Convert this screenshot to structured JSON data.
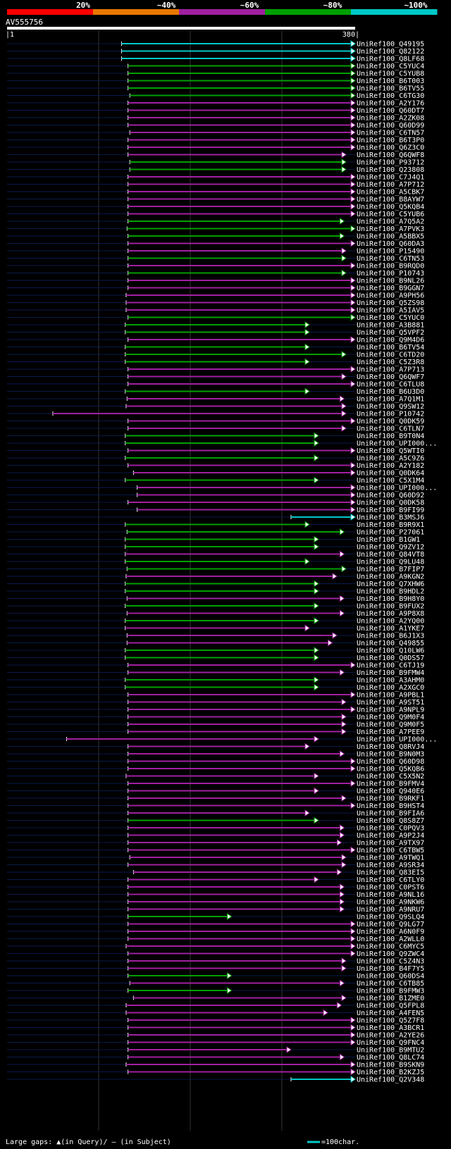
{
  "chart_data": {
    "type": "alignment-graphic",
    "query": "AV555756",
    "query_start": "1",
    "query_end": "380",
    "query_length": 380,
    "identity_bins": [
      {
        "label": "20%",
        "color": "#ff0000"
      },
      {
        "label": "~40%",
        "color": "#e87800"
      },
      {
        "label": "~60%",
        "color": "#a020a0"
      },
      {
        "label": "~80%",
        "color": "#00a000"
      },
      {
        "label": "~100%",
        "color": "#00c8c8"
      }
    ],
    "footer_gaps": "Large gaps: ▲(in Query)/ – (in Subject)",
    "footer_scale": "=100char.",
    "hits": [
      {
        "id": "UniRef100_Q49195",
        "start": 125,
        "end": 380,
        "bin": 4
      },
      {
        "id": "UniRef100_Q82122",
        "start": 125,
        "end": 380,
        "bin": 4
      },
      {
        "id": "UniRef100_Q8LF68",
        "start": 125,
        "end": 380,
        "bin": 4
      },
      {
        "id": "UniRef100_C5YUC4",
        "start": 132,
        "end": 380,
        "bin": 3
      },
      {
        "id": "UniRef100_C5YUB8",
        "start": 132,
        "end": 380,
        "bin": 3
      },
      {
        "id": "UniRef100_B6T003",
        "start": 132,
        "end": 380,
        "bin": 3
      },
      {
        "id": "UniRef100_B6TV55",
        "start": 132,
        "end": 380,
        "bin": 3
      },
      {
        "id": "UniRef100_C6TG30",
        "start": 134,
        "end": 380,
        "bin": 3
      },
      {
        "id": "UniRef100_A2Y176",
        "start": 132,
        "end": 380,
        "bin": 2
      },
      {
        "id": "UniRef100_Q60DT7",
        "start": 132,
        "end": 380,
        "bin": 2
      },
      {
        "id": "UniRef100_A2ZK08",
        "start": 132,
        "end": 380,
        "bin": 2
      },
      {
        "id": "UniRef100_Q60D99",
        "start": 132,
        "end": 380,
        "bin": 2
      },
      {
        "id": "UniRef100_C6TN57",
        "start": 134,
        "end": 380,
        "bin": 2
      },
      {
        "id": "UniRef100_B6T3P0",
        "start": 132,
        "end": 380,
        "bin": 2
      },
      {
        "id": "UniRef100_Q6Z3C0",
        "start": 132,
        "end": 380,
        "bin": 2
      },
      {
        "id": "UniRef100_Q6QWF8",
        "start": 132,
        "end": 370,
        "bin": 2
      },
      {
        "id": "UniRef100_P93712",
        "start": 134,
        "end": 370,
        "bin": 3
      },
      {
        "id": "UniRef100_Q23808",
        "start": 134,
        "end": 370,
        "bin": 3
      },
      {
        "id": "UniRef100_C7J4Q1",
        "start": 132,
        "end": 380,
        "bin": 2
      },
      {
        "id": "UniRef100_A7P712",
        "start": 132,
        "end": 380,
        "bin": 2
      },
      {
        "id": "UniRef100_A5CBK7",
        "start": 132,
        "end": 380,
        "bin": 2
      },
      {
        "id": "UniRef100_B8AYW7",
        "start": 132,
        "end": 380,
        "bin": 2
      },
      {
        "id": "UniRef100_Q5KQB4",
        "start": 132,
        "end": 380,
        "bin": 2
      },
      {
        "id": "UniRef100_C5YUB6",
        "start": 132,
        "end": 380,
        "bin": 2
      },
      {
        "id": "UniRef100_A7Q5A2",
        "start": 132,
        "end": 368,
        "bin": 3
      },
      {
        "id": "UniRef100_A7PVK3",
        "start": 131,
        "end": 380,
        "bin": 3
      },
      {
        "id": "UniRef100_A5BBX5",
        "start": 132,
        "end": 368,
        "bin": 3
      },
      {
        "id": "UniRef100_Q60DA3",
        "start": 132,
        "end": 380,
        "bin": 2
      },
      {
        "id": "UniRef100_P15490",
        "start": 132,
        "end": 370,
        "bin": 2
      },
      {
        "id": "UniRef100_C6TN53",
        "start": 132,
        "end": 370,
        "bin": 3
      },
      {
        "id": "UniRef100_B9RQD0",
        "start": 132,
        "end": 380,
        "bin": 2
      },
      {
        "id": "UniRef100_P10743",
        "start": 132,
        "end": 370,
        "bin": 3
      },
      {
        "id": "UniRef100_B9NL26",
        "start": 132,
        "end": 380,
        "bin": 2
      },
      {
        "id": "UniRef100_B9GGN7",
        "start": 132,
        "end": 380,
        "bin": 2
      },
      {
        "id": "UniRef100_A9PH56",
        "start": 130,
        "end": 380,
        "bin": 2
      },
      {
        "id": "UniRef100_Q5ZS98",
        "start": 130,
        "end": 380,
        "bin": 2
      },
      {
        "id": "UniRef100_A5IAV5",
        "start": 130,
        "end": 380,
        "bin": 2
      },
      {
        "id": "UniRef100_C5YUC0",
        "start": 132,
        "end": 380,
        "bin": 3
      },
      {
        "id": "UniRef100_A3B881",
        "start": 129,
        "end": 330,
        "bin": 3
      },
      {
        "id": "UniRef100_Q5VPF2",
        "start": 129,
        "end": 330,
        "bin": 3
      },
      {
        "id": "UniRef100_Q9M4D6",
        "start": 132,
        "end": 380,
        "bin": 2
      },
      {
        "id": "UniRef100_B6TV54",
        "start": 129,
        "end": 330,
        "bin": 3
      },
      {
        "id": "UniRef100_C6TD20",
        "start": 129,
        "end": 370,
        "bin": 3
      },
      {
        "id": "UniRef100_C5Z3R8",
        "start": 129,
        "end": 330,
        "bin": 3
      },
      {
        "id": "UniRef100_A7P713",
        "start": 132,
        "end": 380,
        "bin": 2
      },
      {
        "id": "UniRef100_Q6QWF7",
        "start": 132,
        "end": 370,
        "bin": 2
      },
      {
        "id": "UniRef100_C6TLU8",
        "start": 132,
        "end": 380,
        "bin": 2
      },
      {
        "id": "UniRef100_B6U3D0",
        "start": 129,
        "end": 330,
        "bin": 3
      },
      {
        "id": "UniRef100_A7Q1M1",
        "start": 131,
        "end": 368,
        "bin": 2
      },
      {
        "id": "UniRef100_Q9SW12",
        "start": 130,
        "end": 370,
        "bin": 2
      },
      {
        "id": "UniRef100_P10742",
        "start": 50,
        "end": 370,
        "bin": 2
      },
      {
        "id": "UniRef100_Q0DK59",
        "start": 132,
        "end": 380,
        "bin": 2
      },
      {
        "id": "UniRef100_C6TLN7",
        "start": 132,
        "end": 370,
        "bin": 2
      },
      {
        "id": "UniRef100_B9T0N4",
        "start": 129,
        "end": 340,
        "bin": 3
      },
      {
        "id": "UniRef100_UPI000...",
        "start": 129,
        "end": 340,
        "bin": 3
      },
      {
        "id": "UniRef100_Q5WTI0",
        "start": 132,
        "end": 380,
        "bin": 2
      },
      {
        "id": "UniRef100_A5C9Z6",
        "start": 129,
        "end": 340,
        "bin": 3
      },
      {
        "id": "UniRef100_A2Y182",
        "start": 132,
        "end": 380,
        "bin": 2
      },
      {
        "id": "UniRef100_Q0DK64",
        "start": 138,
        "end": 380,
        "bin": 2
      },
      {
        "id": "UniRef100_C5X1M4",
        "start": 129,
        "end": 340,
        "bin": 3
      },
      {
        "id": "UniRef100_UPI000...",
        "start": 142,
        "end": 380,
        "bin": 2
      },
      {
        "id": "UniRef100_Q60D92",
        "start": 142,
        "end": 380,
        "bin": 2
      },
      {
        "id": "UniRef100_Q0DK58",
        "start": 132,
        "end": 380,
        "bin": 2
      },
      {
        "id": "UniRef100_B9FI99",
        "start": 142,
        "end": 380,
        "bin": 2
      },
      {
        "id": "UniRef100_B3MSJ6",
        "start": 310,
        "end": 380,
        "bin": 4
      },
      {
        "id": "UniRef100_B9R9X1",
        "start": 129,
        "end": 330,
        "bin": 3
      },
      {
        "id": "UniRef100_P27061",
        "start": 131,
        "end": 368,
        "bin": 3
      },
      {
        "id": "UniRef100_B1GW1",
        "start": 129,
        "end": 340,
        "bin": 3
      },
      {
        "id": "UniRef100_Q9ZV12",
        "start": 129,
        "end": 340,
        "bin": 3
      },
      {
        "id": "UniRef100_Q84VT8",
        "start": 129,
        "end": 368,
        "bin": 2
      },
      {
        "id": "UniRef100_Q9LU48",
        "start": 129,
        "end": 330,
        "bin": 3
      },
      {
        "id": "UniRef100_B7FIP7",
        "start": 131,
        "end": 370,
        "bin": 3
      },
      {
        "id": "UniRef100_A9KGN2",
        "start": 130,
        "end": 360,
        "bin": 2
      },
      {
        "id": "UniRef100_Q7XHW6",
        "start": 129,
        "end": 340,
        "bin": 3
      },
      {
        "id": "UniRef100_B9HDL2",
        "start": 129,
        "end": 340,
        "bin": 3
      },
      {
        "id": "UniRef100_B9H8Y0",
        "start": 131,
        "end": 368,
        "bin": 2
      },
      {
        "id": "UniRef100_B9FUX2",
        "start": 129,
        "end": 340,
        "bin": 3
      },
      {
        "id": "UniRef100_A9P8X8",
        "start": 131,
        "end": 368,
        "bin": 2
      },
      {
        "id": "UniRef100_A2YQ00",
        "start": 129,
        "end": 340,
        "bin": 3
      },
      {
        "id": "UniRef100_A1YKE7",
        "start": 129,
        "end": 330,
        "bin": 2
      },
      {
        "id": "UniRef100_B6J1X3",
        "start": 131,
        "end": 360,
        "bin": 2
      },
      {
        "id": "UniRef100_Q49855",
        "start": 131,
        "end": 355,
        "bin": 2
      },
      {
        "id": "UniRef100_Q10LW6",
        "start": 129,
        "end": 340,
        "bin": 3
      },
      {
        "id": "UniRef100_Q0DS57",
        "start": 129,
        "end": 340,
        "bin": 3
      },
      {
        "id": "UniRef100_C6TJ19",
        "start": 132,
        "end": 380,
        "bin": 2
      },
      {
        "id": "UniRef100_B9FMW4",
        "start": 132,
        "end": 368,
        "bin": 2
      },
      {
        "id": "UniRef100_A3AHM0",
        "start": 129,
        "end": 340,
        "bin": 3
      },
      {
        "id": "UniRef100_A2XGC0",
        "start": 129,
        "end": 340,
        "bin": 3
      },
      {
        "id": "UniRef100_A9PBL1",
        "start": 132,
        "end": 380,
        "bin": 2
      },
      {
        "id": "UniRef100_A9ST51",
        "start": 132,
        "end": 370,
        "bin": 2
      },
      {
        "id": "UniRef100_A9NPL9",
        "start": 132,
        "end": 380,
        "bin": 2
      },
      {
        "id": "UniRef100_Q9M0F4",
        "start": 132,
        "end": 370,
        "bin": 2
      },
      {
        "id": "UniRef100_Q9M0F5",
        "start": 132,
        "end": 370,
        "bin": 2
      },
      {
        "id": "UniRef100_A7PEE9",
        "start": 132,
        "end": 370,
        "bin": 2
      },
      {
        "id": "UniRef100_UPI000...",
        "start": 65,
        "end": 340,
        "bin": 2
      },
      {
        "id": "UniRef100_Q8RVJ4",
        "start": 132,
        "end": 330,
        "bin": 2
      },
      {
        "id": "UniRef100_B9N0M3",
        "start": 132,
        "end": 368,
        "bin": 2
      },
      {
        "id": "UniRef100_Q60D98",
        "start": 132,
        "end": 380,
        "bin": 2
      },
      {
        "id": "UniRef100_Q5KQB6",
        "start": 132,
        "end": 380,
        "bin": 2
      },
      {
        "id": "UniRef100_C5X5N2",
        "start": 130,
        "end": 340,
        "bin": 2
      },
      {
        "id": "UniRef100_B9FMV4",
        "start": 132,
        "end": 380,
        "bin": 2
      },
      {
        "id": "UniRef100_Q940E6",
        "start": 132,
        "end": 340,
        "bin": 2
      },
      {
        "id": "UniRef100_B9RKF1",
        "start": 132,
        "end": 370,
        "bin": 2
      },
      {
        "id": "UniRef100_B9HST4",
        "start": 132,
        "end": 380,
        "bin": 2
      },
      {
        "id": "UniRef100_B9FIA6",
        "start": 132,
        "end": 330,
        "bin": 2
      },
      {
        "id": "UniRef100_Q8S8Z7",
        "start": 132,
        "end": 340,
        "bin": 3
      },
      {
        "id": "UniRef100_C0PQV3",
        "start": 132,
        "end": 368,
        "bin": 2
      },
      {
        "id": "UniRef100_A9P2J4",
        "start": 132,
        "end": 368,
        "bin": 2
      },
      {
        "id": "UniRef100_A9TX97",
        "start": 132,
        "end": 365,
        "bin": 2
      },
      {
        "id": "UniRef100_C6TBW5",
        "start": 132,
        "end": 380,
        "bin": 2
      },
      {
        "id": "UniRef100_A9TWQ1",
        "start": 134,
        "end": 370,
        "bin": 2
      },
      {
        "id": "UniRef100_A9SR34",
        "start": 132,
        "end": 370,
        "bin": 2
      },
      {
        "id": "UniRef100_Q83EI5",
        "start": 138,
        "end": 365,
        "bin": 2
      },
      {
        "id": "UniRef100_C6TLY0",
        "start": 132,
        "end": 340,
        "bin": 2
      },
      {
        "id": "UniRef100_C0PST6",
        "start": 132,
        "end": 368,
        "bin": 2
      },
      {
        "id": "UniRef100_A9NL16",
        "start": 132,
        "end": 368,
        "bin": 2
      },
      {
        "id": "UniRef100_A9NKW6",
        "start": 132,
        "end": 368,
        "bin": 2
      },
      {
        "id": "UniRef100_A9NRU7",
        "start": 132,
        "end": 368,
        "bin": 2
      },
      {
        "id": "UniRef100_Q9SLQ4",
        "start": 132,
        "end": 245,
        "bin": 3
      },
      {
        "id": "UniRef100_Q9LG77",
        "start": 132,
        "end": 380,
        "bin": 2
      },
      {
        "id": "UniRef100_A6N0F9",
        "start": 132,
        "end": 380,
        "bin": 2
      },
      {
        "id": "UniRef100_A2WLL0",
        "start": 132,
        "end": 380,
        "bin": 2
      },
      {
        "id": "UniRef100_C6MYC5",
        "start": 130,
        "end": 380,
        "bin": 2
      },
      {
        "id": "UniRef100_Q9ZWC4",
        "start": 132,
        "end": 380,
        "bin": 2
      },
      {
        "id": "UniRef100_C5Z4N3",
        "start": 132,
        "end": 370,
        "bin": 2
      },
      {
        "id": "UniRef100_B4F7Y5",
        "start": 132,
        "end": 370,
        "bin": 2
      },
      {
        "id": "UniRef100_Q60DS4",
        "start": 132,
        "end": 245,
        "bin": 3
      },
      {
        "id": "UniRef100_C6TB85",
        "start": 134,
        "end": 368,
        "bin": 2
      },
      {
        "id": "UniRef100_B9FMW3",
        "start": 132,
        "end": 245,
        "bin": 3
      },
      {
        "id": "UniRef100_B1ZME0",
        "start": 138,
        "end": 370,
        "bin": 2
      },
      {
        "id": "UniRef100_Q5FPL8",
        "start": 130,
        "end": 365,
        "bin": 2
      },
      {
        "id": "UniRef100_A4FEN5",
        "start": 130,
        "end": 350,
        "bin": 2
      },
      {
        "id": "UniRef100_Q5Z7F8",
        "start": 132,
        "end": 380,
        "bin": 2
      },
      {
        "id": "UniRef100_A3BCR1",
        "start": 132,
        "end": 380,
        "bin": 2
      },
      {
        "id": "UniRef100_A2YE26",
        "start": 132,
        "end": 380,
        "bin": 2
      },
      {
        "id": "UniRef100_Q9FNC4",
        "start": 132,
        "end": 380,
        "bin": 2
      },
      {
        "id": "UniRef100_B9MTU2",
        "start": 132,
        "end": 310,
        "bin": 2
      },
      {
        "id": "UniRef100_Q8LC74",
        "start": 132,
        "end": 368,
        "bin": 2
      },
      {
        "id": "UniRef100_B9SKN9",
        "start": 130,
        "end": 380,
        "bin": 2
      },
      {
        "id": "UniRef100_B2KZJ5",
        "start": 132,
        "end": 380,
        "bin": 2
      },
      {
        "id": "UniRef100_Q2V348",
        "start": 310,
        "end": 380,
        "bin": 4
      }
    ]
  }
}
